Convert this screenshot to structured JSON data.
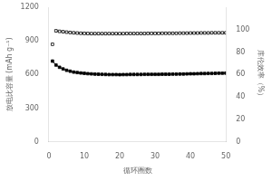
{
  "chart_data": {
    "type": "line",
    "xlabel": "循环圈数",
    "ylabel": "放电比容量 (mAh g⁻¹)",
    "y2label": "库伦效率（%）",
    "xlim": [
      0,
      50
    ],
    "xticks": [
      0,
      10,
      20,
      30,
      40,
      50
    ],
    "ylim": [
      0,
      1200
    ],
    "yticks": [
      0,
      300,
      600,
      900,
      1200
    ],
    "y2lim": [
      0,
      120
    ],
    "y2ticks": [
      0,
      20,
      40,
      60,
      80,
      100
    ],
    "grid": false,
    "series": [
      {
        "color": "black",
        "marker": "filled_square",
        "line_style": "solid",
        "x": [
          1,
          2,
          3,
          4,
          5,
          6,
          7,
          8,
          9,
          10,
          11,
          12,
          13,
          14,
          15,
          16,
          17,
          18,
          19,
          20,
          21,
          22,
          23,
          24,
          25,
          26,
          27,
          28,
          29,
          30,
          31,
          32,
          33,
          34,
          35,
          36,
          37,
          38,
          39,
          40,
          41,
          42,
          43,
          44,
          45,
          46,
          47,
          48,
          49,
          50
        ],
        "values": [
          720,
          685,
          665,
          650,
          638,
          630,
          622,
          618,
          614,
          611,
          608,
          606,
          604,
          603,
          602,
          601,
          600,
          600,
          600,
          599,
          600,
          600,
          601,
          601,
          601,
          601,
          602,
          602,
          602,
          602,
          602,
          603,
          603,
          603,
          604,
          604,
          605,
          605,
          606,
          607,
          607,
          608,
          609,
          609,
          610,
          610,
          611,
          612,
          612,
          613
        ]
      },
      {
        "color": "black",
        "marker": "open_square",
        "line_style": "none",
        "axis": "y2",
        "x": [
          1
        ],
        "values": [
          87
        ]
      },
      {
        "color": "black",
        "marker": "open_square",
        "line_style": "solid",
        "axis": "y2",
        "x": [
          2,
          3,
          4,
          5,
          6,
          7,
          8,
          9,
          10,
          11,
          12,
          13,
          14,
          15,
          16,
          17,
          18,
          19,
          20,
          21,
          22,
          23,
          24,
          25,
          26,
          27,
          28,
          29,
          30,
          31,
          32,
          33,
          34,
          35,
          36,
          37,
          38,
          39,
          40,
          41,
          42,
          43,
          44,
          45,
          46,
          47,
          48,
          49,
          50
        ],
        "values": [
          99.0,
          98.5,
          98.2,
          97.8,
          97.5,
          97.2,
          97.0,
          96.8,
          96.7,
          96.6,
          96.5,
          96.5,
          96.5,
          96.5,
          96.5,
          96.5,
          96.5,
          96.5,
          96.5,
          96.5,
          96.6,
          96.6,
          96.6,
          96.6,
          96.6,
          96.6,
          96.7,
          96.7,
          96.7,
          96.7,
          96.8,
          96.8,
          96.8,
          96.8,
          96.8,
          96.9,
          96.9,
          96.9,
          97.0,
          97.0,
          97.0,
          97.1,
          97.1,
          97.1,
          97.2,
          97.2,
          97.2,
          97.2,
          97.2
        ]
      }
    ]
  }
}
